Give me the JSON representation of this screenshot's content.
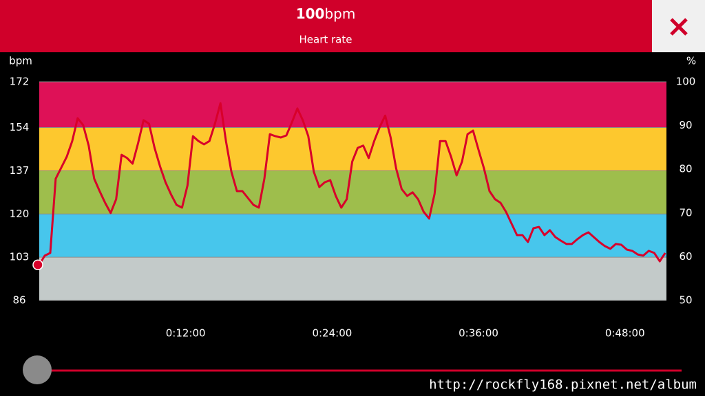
{
  "header": {
    "value": 100,
    "unit": "bpm",
    "label": "Heart rate"
  },
  "chart_data": {
    "type": "line",
    "y_label": "bpm",
    "y2_label": "%",
    "x": [
      0,
      0.45,
      0.9,
      1.35,
      1.8,
      2.25,
      2.7,
      3.15,
      3.6,
      4.05,
      4.5,
      4.95,
      5.4,
      5.85,
      6.3,
      6.75,
      7.2,
      7.65,
      8.1,
      8.55,
      9,
      9.45,
      9.9,
      10.35,
      10.8,
      11.25,
      11.7,
      12.15,
      12.6,
      13.05,
      13.5,
      13.95,
      14.4,
      14.85,
      15.3,
      15.75,
      16.2,
      16.65,
      17.1,
      17.55,
      18,
      18.45,
      18.9,
      19.35,
      19.8,
      20.25,
      20.7,
      21.15,
      21.6,
      22.05,
      22.5,
      22.95,
      23.4,
      23.85,
      24.3,
      24.75,
      25.2,
      25.65,
      26.1,
      26.55,
      27,
      27.45,
      27.9,
      28.35,
      28.8,
      29.25,
      29.7,
      30.15,
      30.6,
      31.05,
      31.5,
      31.95,
      32.4,
      32.85,
      33.3,
      33.75,
      34.2,
      34.65,
      35.1,
      35.55,
      36,
      36.45,
      36.9,
      37.35,
      37.8,
      38.25,
      38.7,
      39.15,
      39.6,
      40.05,
      40.5,
      40.95,
      41.4,
      41.85,
      42.3,
      42.75,
      43.2,
      43.65,
      44.1,
      44.55,
      45,
      45.45,
      45.9,
      46.35,
      46.8,
      47.25,
      47.7,
      48.15,
      48.6,
      49.05,
      49.5,
      49.95,
      50.4,
      50.85,
      51.3
    ],
    "series": [
      {
        "color": "#d8002a",
        "values": [
          100,
          103.6,
          104.7,
          133.9,
          138.2,
          142.5,
          148.7,
          157.7,
          155.0,
          146.9,
          133.9,
          129.0,
          124.4,
          120.4,
          125.8,
          143.3,
          142.0,
          139.8,
          147.9,
          156.9,
          155.5,
          146.0,
          138.7,
          132.5,
          127.7,
          123.6,
          122.5,
          131.2,
          150.6,
          148.7,
          147.4,
          148.7,
          155.5,
          163.6,
          148.7,
          136.6,
          129.0,
          129.0,
          126.3,
          123.6,
          122.5,
          133.9,
          151.4,
          150.6,
          150.1,
          150.9,
          156.0,
          161.5,
          156.9,
          150.6,
          136.6,
          130.6,
          132.5,
          133.3,
          127.1,
          122.5,
          125.8,
          140.6,
          146.0,
          146.9,
          142.0,
          148.7,
          154.2,
          158.7,
          150.1,
          137.9,
          129.8,
          127.1,
          128.5,
          125.8,
          120.9,
          118.2,
          127.9,
          148.7,
          148.7,
          142.5,
          135.2,
          140.6,
          151.4,
          152.8,
          145.2,
          137.9,
          129.0,
          125.8,
          124.4,
          120.9,
          116.3,
          111.7,
          111.7,
          109.0,
          114.4,
          114.9,
          111.7,
          113.6,
          110.9,
          109.5,
          108.2,
          108.2,
          110.1,
          111.7,
          112.8,
          110.9,
          109.0,
          107.4,
          106.3,
          108.2,
          107.9,
          106.0,
          105.5,
          104.1,
          103.6,
          105.5,
          104.7,
          101.4,
          104.7
        ]
      }
    ],
    "xlim": [
      0,
      51.4
    ],
    "xticks": [
      {
        "value": 12,
        "label": "0:12:00"
      },
      {
        "value": 24,
        "label": "0:24:00"
      },
      {
        "value": 36,
        "label": "0:36:00"
      },
      {
        "value": 48,
        "label": "0:48:00"
      }
    ],
    "ylim": [
      86,
      172
    ],
    "yticks": [
      86,
      103,
      120,
      137,
      154,
      172
    ],
    "y2lim": [
      50,
      100
    ],
    "y2ticks": [
      50,
      60,
      70,
      80,
      90,
      100
    ],
    "zone_colors": [
      "#c3cac9",
      "#47c6ec",
      "#9ebe4c",
      "#fdc82e",
      "#de1157"
    ],
    "grid": true
  },
  "watermark": "http://rockfly168.pixnet.net/album"
}
